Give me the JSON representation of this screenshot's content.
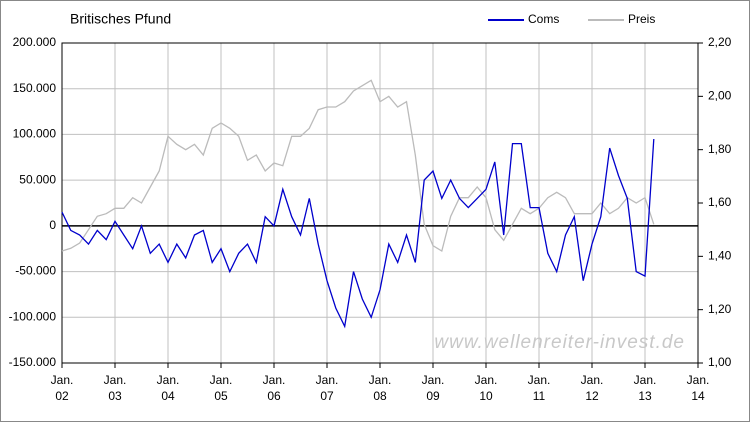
{
  "chart_data": {
    "type": "line",
    "title": "Britisches Pfund",
    "watermark": "www.wellenreiter-invest.de",
    "x": [
      "2002-01",
      "2002-03",
      "2002-05",
      "2002-07",
      "2002-09",
      "2002-11",
      "2003-01",
      "2003-03",
      "2003-05",
      "2003-07",
      "2003-09",
      "2003-11",
      "2004-01",
      "2004-03",
      "2004-05",
      "2004-07",
      "2004-09",
      "2004-11",
      "2005-01",
      "2005-03",
      "2005-05",
      "2005-07",
      "2005-09",
      "2005-11",
      "2006-01",
      "2006-03",
      "2006-05",
      "2006-07",
      "2006-09",
      "2006-11",
      "2007-01",
      "2007-03",
      "2007-05",
      "2007-07",
      "2007-09",
      "2007-11",
      "2008-01",
      "2008-03",
      "2008-05",
      "2008-07",
      "2008-09",
      "2008-11",
      "2009-01",
      "2009-03",
      "2009-05",
      "2009-07",
      "2009-09",
      "2009-11",
      "2010-01",
      "2010-03",
      "2010-05",
      "2010-07",
      "2010-09",
      "2010-11",
      "2011-01",
      "2011-03",
      "2011-05",
      "2011-07",
      "2011-09",
      "2011-11",
      "2012-01",
      "2012-03",
      "2012-05",
      "2012-07",
      "2012-09",
      "2012-11",
      "2013-01",
      "2013-03"
    ],
    "series": [
      {
        "name": "Coms",
        "color": "#0000cc",
        "values": [
          15000,
          -5000,
          -10000,
          -20000,
          -5000,
          -15000,
          5000,
          -10000,
          -25000,
          0,
          -30000,
          -20000,
          -40000,
          -20000,
          -35000,
          -10000,
          -5000,
          -40000,
          -25000,
          -50000,
          -30000,
          -20000,
          -40000,
          10000,
          0,
          40000,
          10000,
          -10000,
          30000,
          -20000,
          -60000,
          -90000,
          -110000,
          -50000,
          -80000,
          -100000,
          -70000,
          -20000,
          -40000,
          -10000,
          -40000,
          50000,
          60000,
          30000,
          50000,
          30000,
          20000,
          30000,
          40000,
          70000,
          -10000,
          90000,
          90000,
          20000,
          20000,
          -30000,
          -50000,
          -10000,
          10000,
          -60000,
          -20000,
          10000,
          85000,
          55000,
          30000,
          -50000,
          -55000,
          95000
        ]
      },
      {
        "name": "Preis",
        "color": "#bbbbbb",
        "axis": "y2",
        "values": [
          1.42,
          1.43,
          1.45,
          1.5,
          1.55,
          1.56,
          1.58,
          1.58,
          1.62,
          1.6,
          1.66,
          1.72,
          1.85,
          1.82,
          1.8,
          1.82,
          1.78,
          1.88,
          1.9,
          1.88,
          1.85,
          1.76,
          1.78,
          1.72,
          1.75,
          1.74,
          1.85,
          1.85,
          1.88,
          1.95,
          1.96,
          1.96,
          1.98,
          2.02,
          2.04,
          2.06,
          1.98,
          2.0,
          1.96,
          1.98,
          1.78,
          1.52,
          1.44,
          1.42,
          1.55,
          1.62,
          1.62,
          1.66,
          1.62,
          1.5,
          1.46,
          1.52,
          1.58,
          1.56,
          1.58,
          1.62,
          1.64,
          1.62,
          1.56,
          1.56,
          1.56,
          1.6,
          1.56,
          1.58,
          1.62,
          1.6,
          1.62,
          1.52
        ]
      }
    ],
    "xlim": [
      "2002-01",
      "2014-01"
    ],
    "xticks": [
      {
        "value": "2002-01",
        "label": "Jan. 02"
      },
      {
        "value": "2003-01",
        "label": "Jan. 03"
      },
      {
        "value": "2004-01",
        "label": "Jan. 04"
      },
      {
        "value": "2005-01",
        "label": "Jan. 05"
      },
      {
        "value": "2006-01",
        "label": "Jan. 06"
      },
      {
        "value": "2007-01",
        "label": "Jan. 07"
      },
      {
        "value": "2008-01",
        "label": "Jan. 08"
      },
      {
        "value": "2009-01",
        "label": "Jan. 09"
      },
      {
        "value": "2010-01",
        "label": "Jan. 10"
      },
      {
        "value": "2011-01",
        "label": "Jan. 11"
      },
      {
        "value": "2012-01",
        "label": "Jan. 12"
      },
      {
        "value": "2013-01",
        "label": "Jan. 13"
      },
      {
        "value": "2014-01",
        "label": "Jan. 14"
      }
    ],
    "ylim": [
      -150000,
      200000
    ],
    "yticks": [
      {
        "value": -150000,
        "label": "-150.000"
      },
      {
        "value": -100000,
        "label": "-100.000"
      },
      {
        "value": -50000,
        "label": "-50.000"
      },
      0,
      {
        "value": 50000,
        "label": "50.000"
      },
      {
        "value": 100000,
        "label": "100.000"
      },
      {
        "value": 150000,
        "label": "150.000"
      },
      {
        "value": 200000,
        "label": "200.000"
      }
    ],
    "y2lim": [
      1.0,
      2.2
    ],
    "y2ticks": [
      {
        "value": 1.0,
        "label": "1,00"
      },
      {
        "value": 1.2,
        "label": "1,20"
      },
      {
        "value": 1.4,
        "label": "1,40"
      },
      {
        "value": 1.6,
        "label": "1,60"
      },
      {
        "value": 1.8,
        "label": "1,80"
      },
      {
        "value": 2.0,
        "label": "2,00"
      },
      {
        "value": 2.2,
        "label": "2,20"
      }
    ],
    "grid": true,
    "legend": "top-right"
  }
}
